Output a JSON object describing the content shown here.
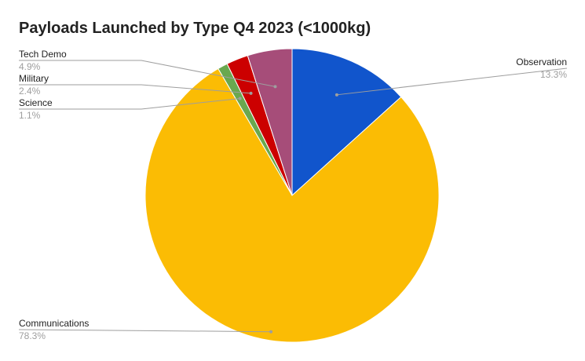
{
  "chart_data": {
    "type": "pie",
    "title": "Payloads Launched by Type Q4 2023 (<1000kg)",
    "slices": [
      {
        "label": "Observation",
        "value": 13.3,
        "pct_label": "13.3%",
        "color": "#1155cc"
      },
      {
        "label": "Communications",
        "value": 78.3,
        "pct_label": "78.3%",
        "color": "#fbbc04"
      },
      {
        "label": "Science",
        "value": 1.1,
        "pct_label": "1.1%",
        "color": "#6aa84f"
      },
      {
        "label": "Military",
        "value": 2.4,
        "pct_label": "2.4%",
        "color": "#cc0000"
      },
      {
        "label": "Tech Demo",
        "value": 4.9,
        "pct_label": "4.9%",
        "color": "#a64d79"
      }
    ],
    "start_angle": "top",
    "direction": "clockwise",
    "legend": "none"
  }
}
